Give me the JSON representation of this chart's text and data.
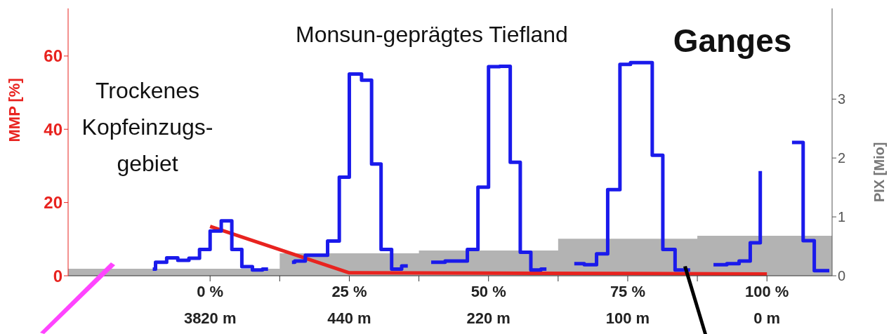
{
  "chart_data": {
    "type": "step",
    "annotations": [
      "Trockenes\nKopfeinzugs-\ngebiet",
      "Monsun-geprägtes Tiefland",
      "Ganges",
      "3820 m",
      "440 m",
      "220 m",
      "100 m",
      "0 m"
    ],
    "ylabel": "MMP [%]",
    "y2label": "PIX [Mio]",
    "xlim": [
      -25.5,
      111.7
    ],
    "xticks": [
      {
        "value": 0,
        "label": "0 %"
      },
      {
        "value": 12.5,
        "label": null
      },
      {
        "value": 25,
        "label": "25 %"
      },
      {
        "value": 37.5,
        "label": null
      },
      {
        "value": 50,
        "label": "50 %"
      },
      {
        "value": 62.5,
        "label": null
      },
      {
        "value": 75,
        "label": "75 %"
      },
      {
        "value": 87.5,
        "label": null
      },
      {
        "value": 100,
        "label": "100 %"
      }
    ],
    "ylim": [
      0,
      73
    ],
    "yticks": [
      0,
      20,
      40,
      60
    ],
    "y2lim": [
      0,
      4.54
    ],
    "y2ticks": [
      0,
      1,
      2,
      3
    ],
    "marker": "none",
    "series": [
      {
        "type": "area",
        "axis": "y2",
        "color": "#b3b3b3",
        "x": [
          -25.5,
          12.5,
          37.5,
          62.5,
          87.5,
          111.7
        ],
        "values": [
          0.12,
          0.38,
          0.43,
          0.63,
          0.68,
          0.68
        ]
      },
      {
        "type": "line",
        "color": "#e8231f",
        "x": [
          0,
          25,
          50,
          75,
          100
        ],
        "values": [
          13.5,
          0.8,
          0.7,
          0.6,
          0.5
        ]
      },
      {
        "color": "#1a1aeb",
        "x": [
          -10.3,
          -9.8,
          -7.8,
          -5.8,
          -3.8,
          -1.9,
          0,
          2,
          3.9,
          5.7,
          7.6,
          9.4,
          10.4
        ],
        "values": [
          1.8,
          3.7,
          4.9,
          4.2,
          4.8,
          7.2,
          12.2,
          15,
          7.2,
          2.5,
          1.6,
          1.8,
          1.8
        ]
      },
      {
        "color": "#1a1aeb",
        "x": [
          14.7,
          15.2,
          17.1,
          19.2,
          21.1,
          23.2,
          25,
          27.2,
          29,
          30.7,
          32.6,
          34.4,
          35.5
        ],
        "values": [
          3.7,
          4,
          5.6,
          5.6,
          9.5,
          26.9,
          55.1,
          53.4,
          30.5,
          7.2,
          1.8,
          2.7,
          2.7
        ]
      },
      {
        "color": "#1a1aeb",
        "x": [
          39.7,
          40.2,
          42.2,
          44.2,
          46.2,
          48.1,
          50,
          52,
          53.9,
          55.7,
          57.6,
          59.4,
          60.4
        ],
        "values": [
          3.7,
          3.7,
          4,
          4,
          7.2,
          24.2,
          57.1,
          57.2,
          31,
          6.4,
          1.6,
          1.8,
          1.8
        ]
      },
      {
        "color": "#1a1aeb",
        "x": [
          65.4,
          67.2,
          69.4,
          71.4,
          73.6,
          75.5,
          79.4,
          81.3,
          83.5,
          86.2
        ],
        "values": [
          3.3,
          3,
          6,
          23.5,
          57.7,
          58.2,
          32.9,
          7.2,
          1.6,
          1.6
        ]
      },
      {
        "color": "#1a1aeb",
        "x": [
          90.4,
          92.8,
          95,
          97,
          98.8,
          100.8,
          102.6,
          104.5,
          106.5,
          108.5,
          111.2
        ],
        "values": [
          3,
          3.3,
          4,
          9,
          28.6,
          null,
          null,
          36.4,
          9.6,
          1.4,
          1.4
        ]
      }
    ]
  }
}
